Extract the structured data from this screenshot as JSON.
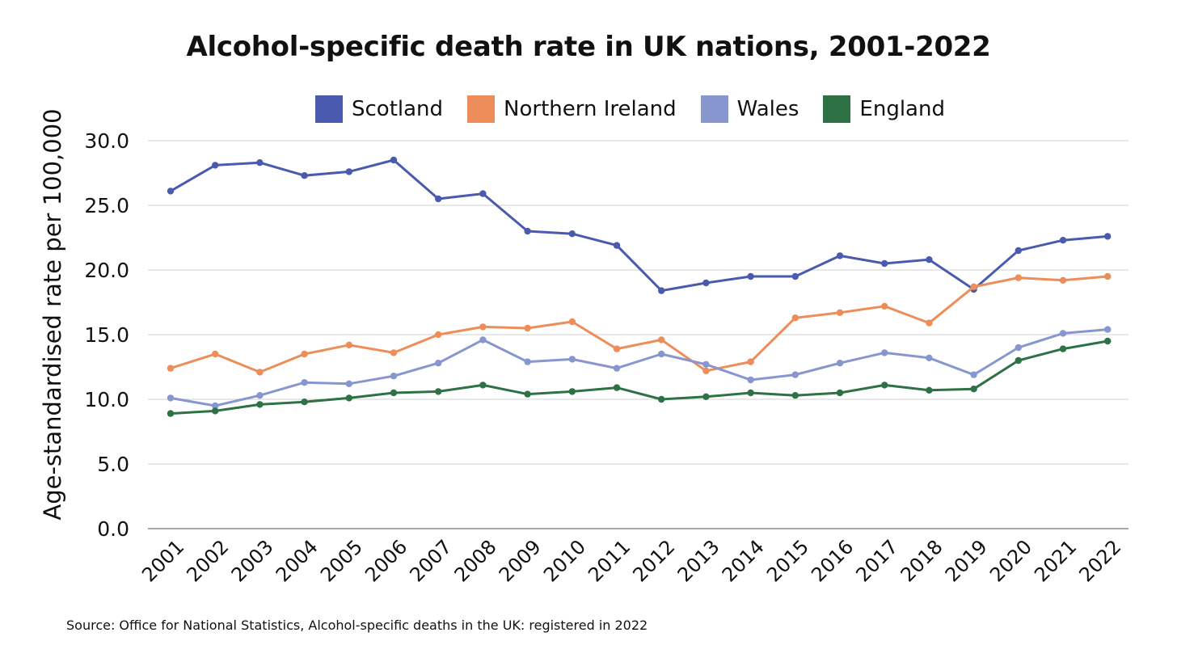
{
  "chart_data": {
    "type": "line",
    "title": "Alcohol-specific death rate in UK nations, 2001-2022",
    "xlabel": "",
    "ylabel": "Age-standardised rate per 100,000",
    "ylim": [
      0,
      30
    ],
    "yticks": [
      "0.0",
      "5.0",
      "10.0",
      "15.0",
      "20.0",
      "25.0",
      "30.0"
    ],
    "grid": "horizontal",
    "legend_position": "top",
    "categories": [
      "2001",
      "2002",
      "2003",
      "2004",
      "2005",
      "2006",
      "2007",
      "2008",
      "2009",
      "2010",
      "2011",
      "2012",
      "2013",
      "2014",
      "2015",
      "2016",
      "2017",
      "2018",
      "2019",
      "2020",
      "2021",
      "2022"
    ],
    "series": [
      {
        "name": "Scotland",
        "color": "#4a5baf",
        "values": [
          26.1,
          28.1,
          28.3,
          27.3,
          27.6,
          28.5,
          25.5,
          25.9,
          23.0,
          22.8,
          21.9,
          18.4,
          19.0,
          19.5,
          19.5,
          21.1,
          20.5,
          20.8,
          18.5,
          21.5,
          22.3,
          22.6
        ]
      },
      {
        "name": "Northern Ireland",
        "color": "#ed8d5a",
        "values": [
          12.4,
          13.5,
          12.1,
          13.5,
          14.2,
          13.6,
          15.0,
          15.6,
          15.5,
          16.0,
          13.9,
          14.6,
          12.2,
          12.9,
          16.3,
          16.7,
          17.2,
          15.9,
          18.7,
          19.4,
          19.2,
          19.5
        ]
      },
      {
        "name": "Wales",
        "color": "#8896d0",
        "values": [
          10.1,
          9.5,
          10.3,
          11.3,
          11.2,
          11.8,
          12.8,
          14.6,
          12.9,
          13.1,
          12.4,
          13.5,
          12.7,
          11.5,
          11.9,
          12.8,
          13.6,
          13.2,
          11.9,
          14.0,
          15.1,
          15.4
        ]
      },
      {
        "name": "England",
        "color": "#2e7144",
        "values": [
          8.9,
          9.1,
          9.6,
          9.8,
          10.1,
          10.5,
          10.6,
          11.1,
          10.4,
          10.6,
          10.9,
          10.0,
          10.2,
          10.5,
          10.3,
          10.5,
          11.1,
          10.7,
          10.8,
          13.0,
          13.9,
          14.5
        ]
      }
    ]
  },
  "source": "Source: Office for National Statistics, Alcohol-specific deaths in the UK: registered in 2022"
}
